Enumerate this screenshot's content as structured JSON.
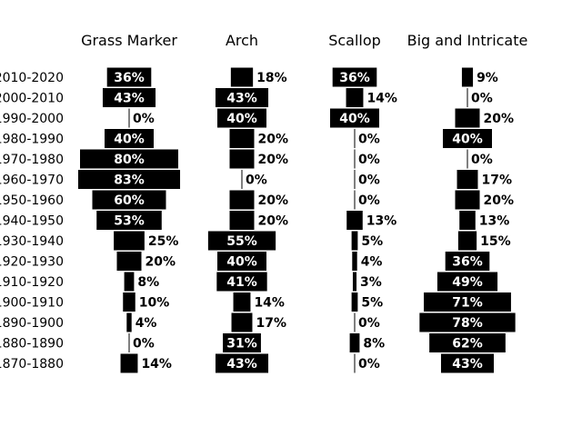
{
  "chart_data": {
    "type": "bar",
    "value_unit": "%",
    "categories": [
      "2010-2020",
      "2000-2010",
      "1990-2000",
      "1980-1990",
      "1970-1980",
      "1960-1970",
      "1950-1960",
      "1940-1950",
      "1930-1940",
      "1920-1930",
      "1910-1920",
      "1900-1910",
      "1890-1900",
      "1880-1890",
      "1870-1880"
    ],
    "series": [
      {
        "name": "Grass Marker",
        "values": [
          36,
          43,
          0,
          40,
          80,
          83,
          60,
          53,
          25,
          20,
          8,
          10,
          4,
          0,
          14
        ]
      },
      {
        "name": "Arch",
        "values": [
          18,
          43,
          40,
          20,
          20,
          0,
          20,
          20,
          55,
          40,
          41,
          14,
          17,
          31,
          43
        ]
      },
      {
        "name": "Scallop",
        "values": [
          36,
          14,
          40,
          0,
          0,
          0,
          0,
          13,
          5,
          4,
          3,
          5,
          0,
          8,
          0
        ]
      },
      {
        "name": "Big and Intricate",
        "values": [
          9,
          0,
          20,
          40,
          0,
          17,
          20,
          13,
          15,
          36,
          49,
          71,
          78,
          62,
          43
        ]
      }
    ],
    "colors": {
      "bar": "#000000",
      "label_inside": "#ffffff",
      "label_outside": "#000000"
    }
  }
}
